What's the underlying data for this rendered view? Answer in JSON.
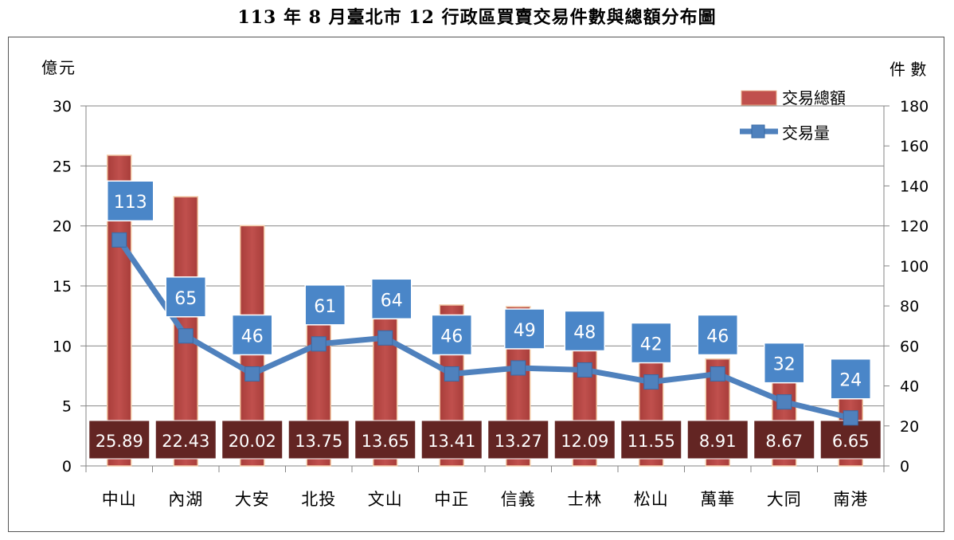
{
  "title": "113 年 8 月臺北市 12 行政區買賣交易件數與總額分布圖",
  "chart_data": {
    "type": "bar",
    "title": "113 年 8 月臺北市 12 行政區買賣交易件數與總額分布圖",
    "categories": [
      "中山",
      "內湖",
      "大安",
      "北投",
      "文山",
      "中正",
      "信義",
      "士林",
      "松山",
      "萬華",
      "大同",
      "南港"
    ],
    "y_left_label": "億元",
    "y_right_label": "件 數",
    "ylim_left": [
      0,
      30
    ],
    "ylim_right": [
      0,
      180
    ],
    "yticks_left": [
      "0",
      "5",
      "10",
      "15",
      "20",
      "25",
      "30"
    ],
    "yticks_right": [
      "0",
      "20",
      "40",
      "60",
      "80",
      "100",
      "120",
      "140",
      "160",
      "180"
    ],
    "grid": "horizontal",
    "legend_position": "top-right",
    "series": [
      {
        "name": "交易總額",
        "type": "bar",
        "axis": "left",
        "color": "#c0504d",
        "values": [
          25.89,
          22.43,
          20.02,
          13.75,
          13.65,
          13.41,
          13.27,
          12.09,
          11.55,
          8.91,
          8.67,
          6.65
        ],
        "labels": [
          "25.89",
          "22.43",
          "20.02",
          "13.75",
          "13.65",
          "13.41",
          "13.27",
          "12.09",
          "11.55",
          "8.91",
          "8.67",
          "6.65"
        ]
      },
      {
        "name": "交易量",
        "type": "line",
        "axis": "right",
        "color": "#4f81bd",
        "values": [
          113,
          65,
          46,
          61,
          64,
          46,
          49,
          48,
          42,
          46,
          32,
          24
        ],
        "labels": [
          "113",
          "65",
          "46",
          "61",
          "64",
          "46",
          "49",
          "48",
          "42",
          "46",
          "32",
          "24"
        ]
      }
    ]
  }
}
